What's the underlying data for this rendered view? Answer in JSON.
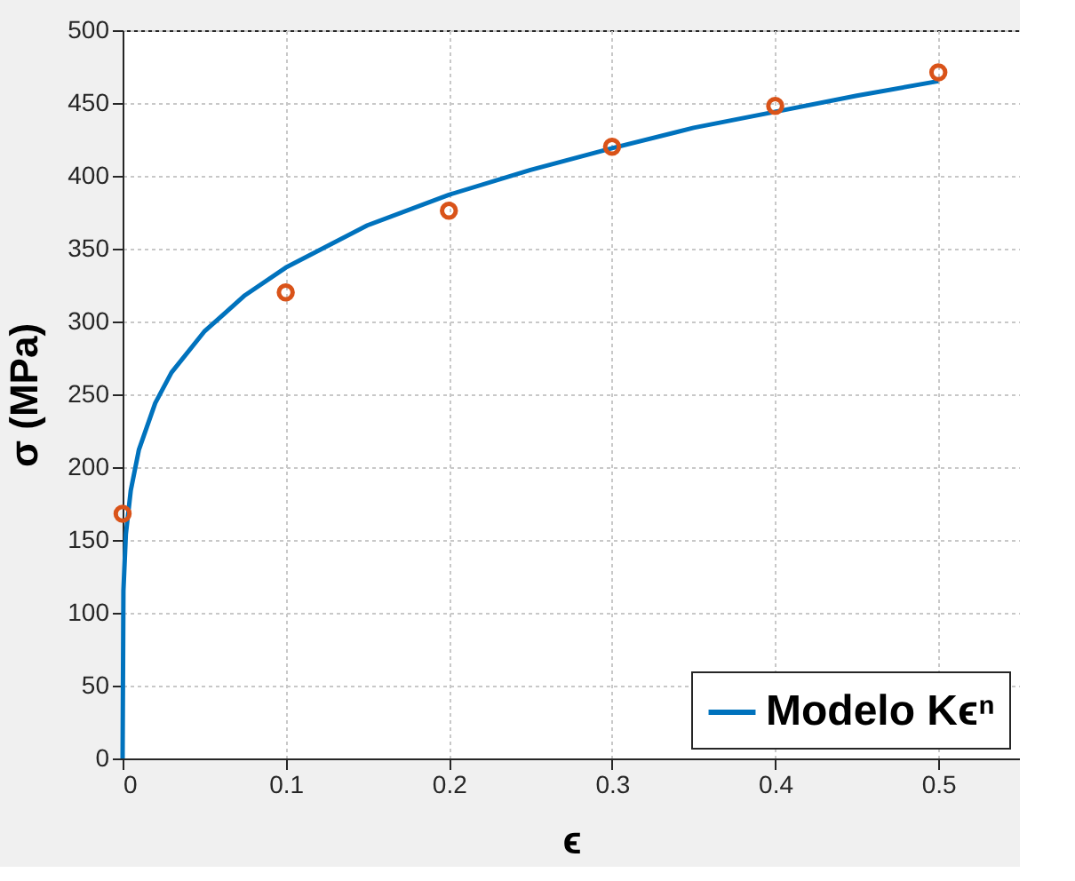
{
  "chart_data": {
    "type": "line",
    "xlabel": "ϵ",
    "ylabel": "σ (MPa)",
    "xlim": [
      0,
      0.55
    ],
    "xticks": [
      0,
      0.1,
      0.2,
      0.3,
      0.4,
      0.5
    ],
    "ylim": [
      0,
      500
    ],
    "yticks": [
      0,
      50,
      100,
      150,
      200,
      250,
      300,
      350,
      400,
      450,
      500
    ],
    "grid": true,
    "legend": "bottom right",
    "series": [
      {
        "name": "Modelo Kϵⁿ",
        "color": "#0072bd",
        "marker": "none",
        "line_style": "solid",
        "x": [
          0,
          0.0005,
          0.002,
          0.005,
          0.01,
          0.02,
          0.03,
          0.05,
          0.075,
          0.1,
          0.15,
          0.2,
          0.25,
          0.3,
          0.35,
          0.4,
          0.45,
          0.5
        ],
        "values": [
          0,
          115,
          154,
          184,
          212,
          244,
          265,
          293,
          318,
          337,
          366,
          387,
          404,
          419,
          433,
          444,
          455,
          465
        ]
      },
      {
        "type": "scatter",
        "color": "#d95319",
        "marker": "circle",
        "x": [
          0,
          0.1,
          0.2,
          0.3,
          0.4,
          0.5
        ],
        "values": [
          168,
          320,
          376,
          420,
          448,
          471
        ]
      }
    ]
  }
}
